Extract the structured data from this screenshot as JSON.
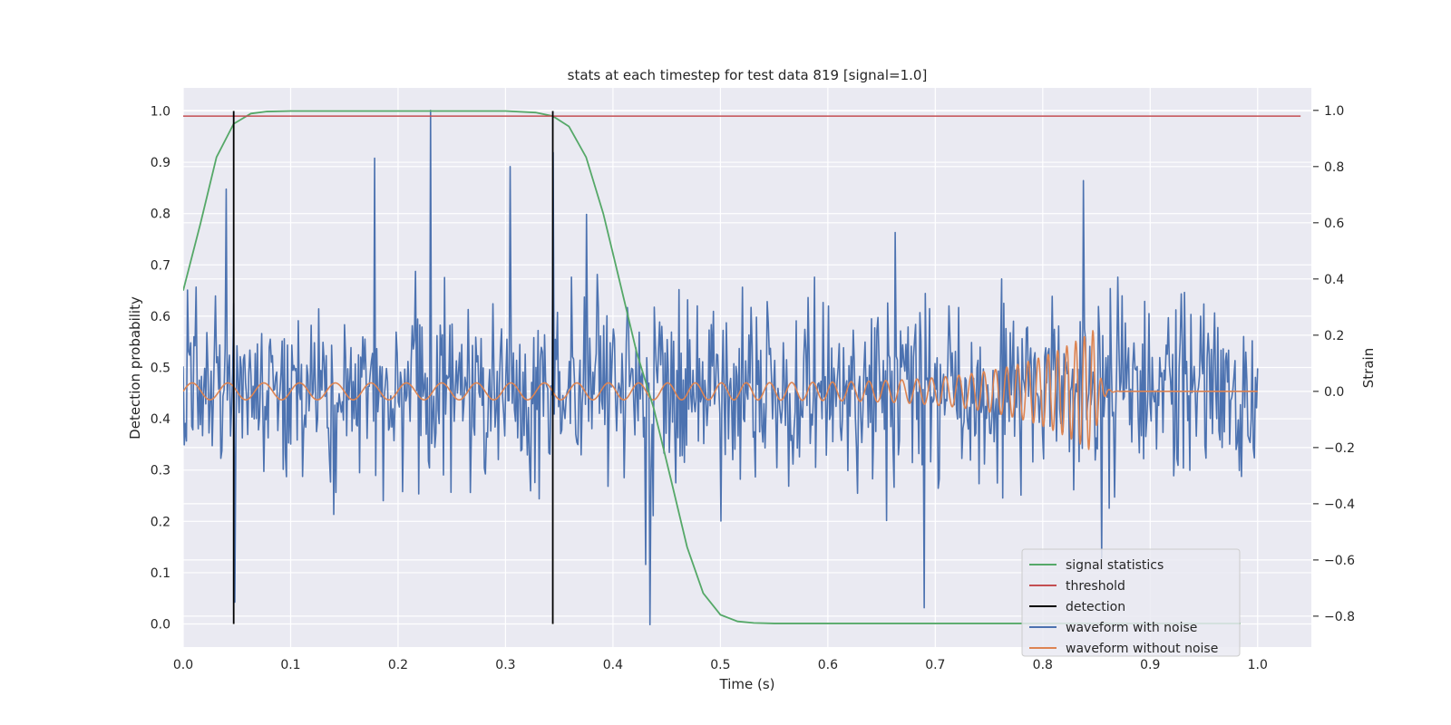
{
  "chart_data": {
    "type": "line",
    "title": "stats at each timestep for test data 819 [signal=1.0]",
    "xlabel": "Time (s)",
    "ylabel_left": "Detection probability",
    "ylabel_right": "Strain",
    "xlim": [
      0.0,
      1.05
    ],
    "ylim_left": [
      -0.045,
      1.045
    ],
    "ylim_right": [
      -0.91,
      1.08
    ],
    "x_ticks": [
      0.0,
      0.1,
      0.2,
      0.3,
      0.4,
      0.5,
      0.6,
      0.7,
      0.8,
      0.9,
      1.0
    ],
    "x_tick_labels": [
      "0.0",
      "0.1",
      "0.2",
      "0.3",
      "0.4",
      "0.5",
      "0.6",
      "0.7",
      "0.8",
      "0.9",
      "1.0"
    ],
    "y_left_ticks": [
      0.0,
      0.1,
      0.2,
      0.3,
      0.4,
      0.5,
      0.6,
      0.7,
      0.8,
      0.9,
      1.0
    ],
    "y_left_tick_labels": [
      "0.0",
      "0.1",
      "0.2",
      "0.3",
      "0.4",
      "0.5",
      "0.6",
      "0.7",
      "0.8",
      "0.9",
      "1.0"
    ],
    "y_right_ticks": [
      -0.8,
      -0.6,
      -0.4,
      -0.2,
      0.0,
      0.2,
      0.4,
      0.6,
      0.8,
      1.0
    ],
    "y_right_tick_labels": [
      "−0.8",
      "−0.6",
      "−0.4",
      "−0.2",
      "0.0",
      "0.2",
      "0.4",
      "0.6",
      "0.8",
      "1.0"
    ],
    "grid": true,
    "legend_position": "lower-right",
    "legend": [
      {
        "name": "signal statistics",
        "color": "#55a868"
      },
      {
        "name": "threshold",
        "color": "#c44e52"
      },
      {
        "name": "detection",
        "color": "#000000"
      },
      {
        "name": "waveform with noise",
        "color": "#4c72b0"
      },
      {
        "name": "waveform without noise",
        "color": "#dd8452"
      }
    ],
    "signal_statistics": {
      "x": [
        0.0,
        0.016,
        0.031,
        0.047,
        0.063,
        0.078,
        0.1,
        0.2,
        0.3,
        0.328,
        0.344,
        0.359,
        0.375,
        0.391,
        0.406,
        0.422,
        0.438,
        0.453,
        0.469,
        0.484,
        0.5,
        0.516,
        0.531,
        0.55,
        0.6,
        0.7,
        0.8,
        0.9,
        0.984
      ],
      "y": [
        0.65,
        0.78,
        0.91,
        0.975,
        0.995,
        0.999,
        1.0,
        1.0,
        1.0,
        0.997,
        0.99,
        0.97,
        0.91,
        0.8,
        0.67,
        0.53,
        0.42,
        0.29,
        0.15,
        0.06,
        0.018,
        0.005,
        0.002,
        0.001,
        0.001,
        0.001,
        0.001,
        0.001,
        0.001
      ]
    },
    "threshold": {
      "value": 0.99,
      "x_range": [
        0.0,
        1.04
      ]
    },
    "detections": [
      0.047,
      0.344
    ],
    "waveform_with_noise": {
      "n_points": 1000,
      "x_range": [
        0.0,
        1.0
      ],
      "amplitude_std": 0.16,
      "peaks": [
        {
          "x": 0.23,
          "y": 1.0
        },
        {
          "x": 0.344,
          "y": 0.85
        },
        {
          "x": 0.375,
          "y": 0.63
        },
        {
          "x": 0.434,
          "y": -0.83
        },
        {
          "x": 0.048,
          "y": -0.75
        },
        {
          "x": 0.69,
          "y": -0.77
        },
        {
          "x": 0.838,
          "y": 0.75
        },
        {
          "x": 0.178,
          "y": 0.83
        },
        {
          "x": 0.304,
          "y": 0.8
        },
        {
          "x": 0.04,
          "y": 0.72
        }
      ]
    },
    "waveform_without_noise": {
      "x_range": [
        0.0,
        1.0
      ],
      "merger_time": 0.848,
      "start_amplitude": 0.03,
      "peak_amplitude": 0.22,
      "start_frequency_hz": 30,
      "end_frequency_hz": 130
    }
  }
}
